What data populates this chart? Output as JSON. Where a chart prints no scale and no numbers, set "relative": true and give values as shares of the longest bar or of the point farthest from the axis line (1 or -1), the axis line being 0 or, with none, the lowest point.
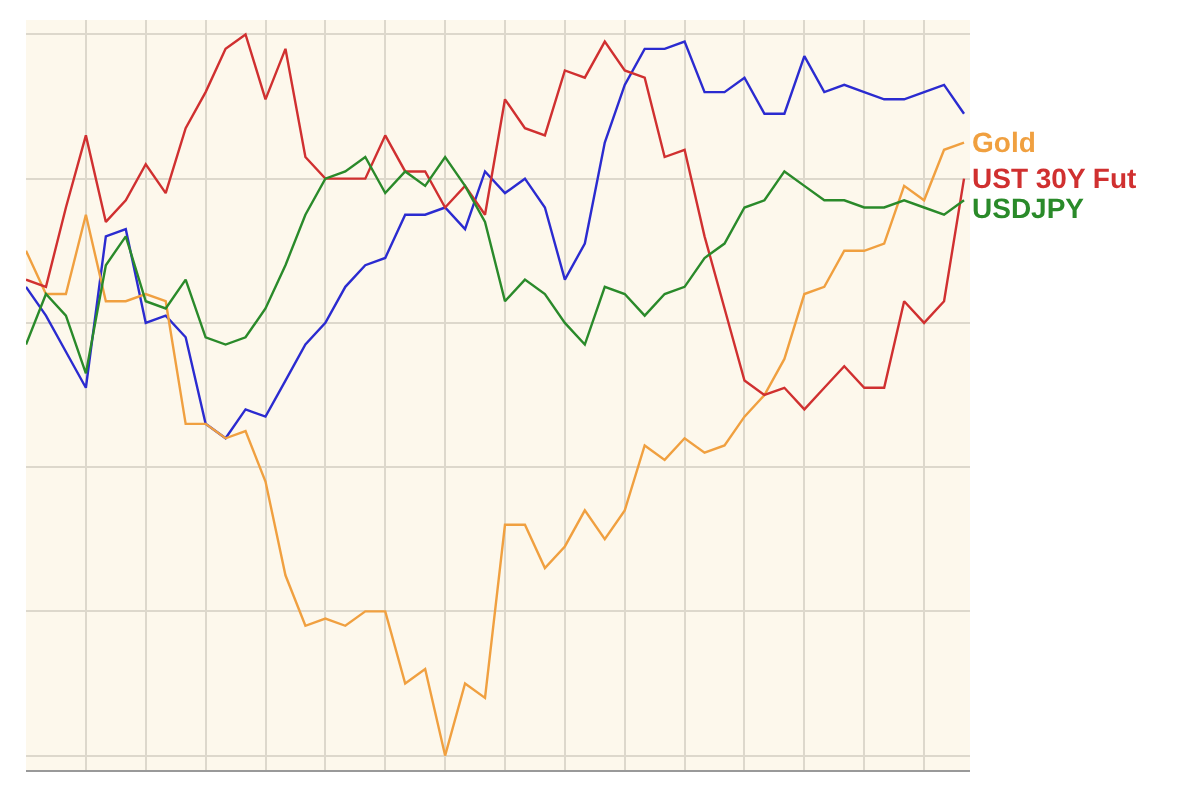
{
  "chart_data": {
    "type": "line",
    "relative": true,
    "grid": true,
    "legend": false,
    "categories": [
      null,
      null,
      null,
      null,
      null,
      null,
      null,
      null,
      null,
      null,
      null,
      null,
      null,
      null,
      null,
      null,
      null,
      null,
      null,
      null,
      null,
      null,
      null,
      null,
      null,
      null,
      null,
      null,
      null,
      null,
      null,
      null,
      null,
      null,
      null,
      null,
      null,
      null,
      null,
      null,
      null,
      null,
      null,
      null,
      null,
      null,
      null,
      null
    ],
    "series": [
      {
        "color": "#2b2bd0",
        "values": [
          0.65,
          0.61,
          0.56,
          0.51,
          0.72,
          0.73,
          0.6,
          0.61,
          0.58,
          0.46,
          0.44,
          0.48,
          0.47,
          0.52,
          0.57,
          0.6,
          0.65,
          0.68,
          0.69,
          0.75,
          0.75,
          0.76,
          0.73,
          0.81,
          0.78,
          0.8,
          0.76,
          0.66,
          0.71,
          0.85,
          0.93,
          0.98,
          0.98,
          0.99,
          0.92,
          0.92,
          0.94,
          0.89,
          0.89,
          0.97,
          0.92,
          0.93,
          0.92,
          0.91,
          0.91,
          0.92,
          0.93,
          0.89
        ]
      },
      {
        "name": "Gold",
        "color": "#f0a040",
        "values": [
          0.7,
          0.64,
          0.64,
          0.75,
          0.63,
          0.63,
          0.64,
          0.63,
          0.46,
          0.46,
          0.44,
          0.45,
          0.38,
          0.25,
          0.18,
          0.19,
          0.18,
          0.2,
          0.2,
          0.1,
          0.12,
          0,
          0.1,
          0.08,
          0.32,
          0.32,
          0.26,
          0.29,
          0.34,
          0.3,
          0.34,
          0.43,
          0.41,
          0.44,
          0.42,
          0.43,
          0.47,
          0.5,
          0.55,
          0.64,
          0.65,
          0.7,
          0.7,
          0.71,
          0.79,
          0.77,
          0.84,
          0.85
        ]
      },
      {
        "name": "UST 30Y Fut",
        "color": "#d03030",
        "values": [
          0.66,
          0.65,
          0.76,
          0.86,
          0.74,
          0.77,
          0.82,
          0.78,
          0.87,
          0.92,
          0.98,
          1.0,
          0.91,
          0.98,
          0.83,
          0.8,
          0.8,
          0.8,
          0.86,
          0.81,
          0.81,
          0.76,
          0.79,
          0.75,
          0.91,
          0.87,
          0.86,
          0.95,
          0.94,
          0.99,
          0.95,
          0.94,
          0.83,
          0.84,
          0.72,
          0.62,
          0.52,
          0.5,
          0.51,
          0.48,
          0.51,
          0.54,
          0.51,
          0.51,
          0.63,
          0.6,
          0.63,
          0.8
        ]
      },
      {
        "name": "USDJPY",
        "color": "#2a8a2a",
        "values": [
          0.57,
          0.64,
          0.61,
          0.53,
          0.68,
          0.72,
          0.63,
          0.62,
          0.66,
          0.58,
          0.57,
          0.58,
          0.62,
          0.68,
          0.75,
          0.8,
          0.81,
          0.83,
          0.78,
          0.81,
          0.79,
          0.83,
          0.79,
          0.74,
          0.63,
          0.66,
          0.64,
          0.6,
          0.57,
          0.65,
          0.64,
          0.61,
          0.64,
          0.65,
          0.69,
          0.71,
          0.76,
          0.77,
          0.81,
          0.79,
          0.77,
          0.77,
          0.76,
          0.76,
          0.77,
          0.76,
          0.75,
          0.77
        ]
      }
    ]
  }
}
